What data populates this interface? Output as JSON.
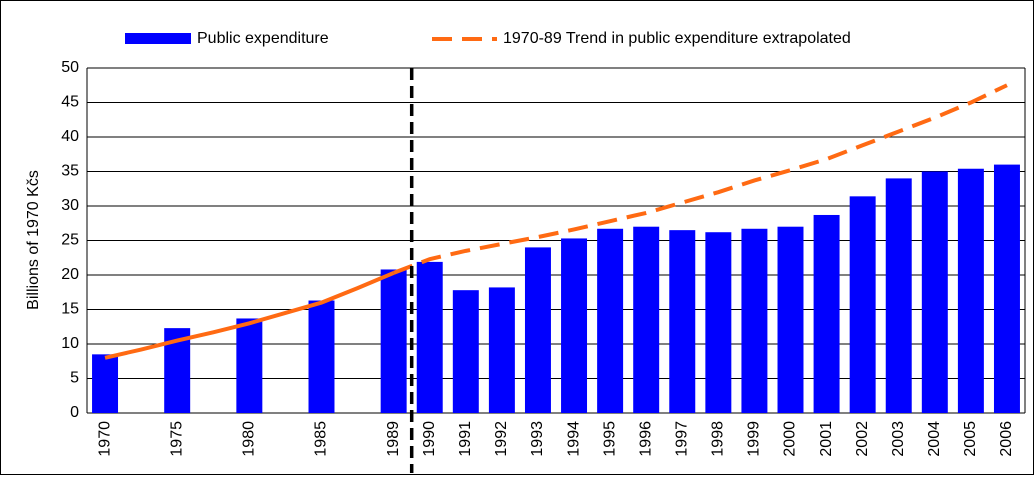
{
  "chart_data": {
    "type": "bar",
    "categories": [
      "1970",
      null,
      "1975",
      null,
      "1980",
      null,
      "1985",
      null,
      "1989",
      "1990",
      "1991",
      "1992",
      "1993",
      "1994",
      "1995",
      "1996",
      "1997",
      "1998",
      "1999",
      "2000",
      "2001",
      "2002",
      "2003",
      "2004",
      "2005",
      "2006"
    ],
    "series": [
      {
        "name": "Public expenditure",
        "type": "bar",
        "color": "#0000ff",
        "values": [
          8.5,
          null,
          12.3,
          null,
          13.7,
          null,
          16.3,
          null,
          20.8,
          21.9,
          17.8,
          18.2,
          24,
          25.3,
          26.7,
          27,
          26.5,
          26.2,
          26.7,
          27,
          28.7,
          31.4,
          34,
          35,
          35.4,
          36
        ]
      },
      {
        "name": "1970-89 Trend in public expenditure extrapolated",
        "type": "line",
        "color": "#ff6a13",
        "values": [
          8,
          9.2,
          10.5,
          11.7,
          13,
          14.5,
          16,
          18.1,
          20.3,
          22.3,
          23.5,
          24.5,
          25.5,
          26.6,
          27.8,
          29,
          30.5,
          32,
          33.7,
          35.2,
          36.8,
          38.8,
          40.8,
          42.8,
          45,
          47.5
        ]
      }
    ],
    "divider_after": "1989",
    "y_label": "Billions of 1970 Kčs",
    "ylim": [
      0,
      50
    ],
    "yticks": [
      0,
      5,
      10,
      15,
      20,
      25,
      30,
      35,
      40,
      45,
      50
    ],
    "grid": true
  }
}
